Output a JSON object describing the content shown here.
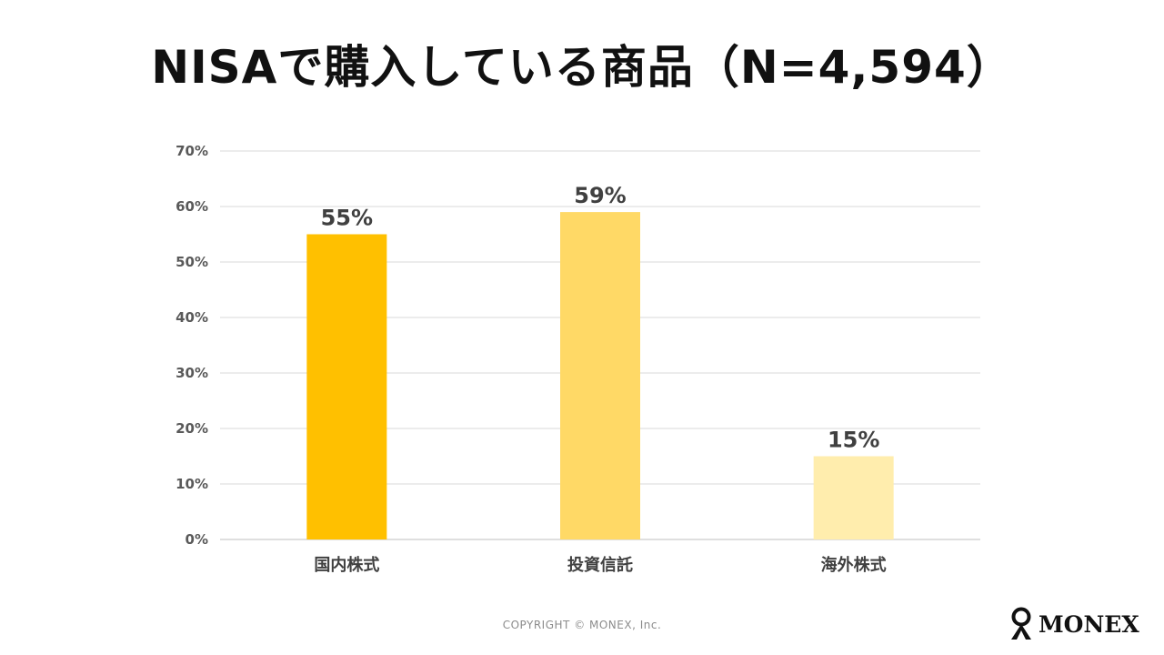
{
  "chart_data": {
    "type": "bar",
    "title": "NISAで購入している商品（N=4,594）",
    "categories": [
      "国内株式",
      "投資信託",
      "海外株式"
    ],
    "values": [
      55,
      59,
      15
    ],
    "value_labels": [
      "55%",
      "59%",
      "15%"
    ],
    "bar_colors": [
      "#FFC000",
      "#FFD966",
      "#FFEDAD"
    ],
    "xlabel": "",
    "ylabel": "",
    "ylim": [
      0,
      70
    ],
    "yticks": [
      "0%",
      "10%",
      "20%",
      "30%",
      "40%",
      "50%",
      "60%",
      "70%"
    ],
    "grid": true,
    "legend": "none"
  },
  "footer": {
    "copyright": "COPYRIGHT © MONEX, Inc.",
    "logo_text": "MONEX",
    "logo_icon": "monex-logo-icon"
  }
}
